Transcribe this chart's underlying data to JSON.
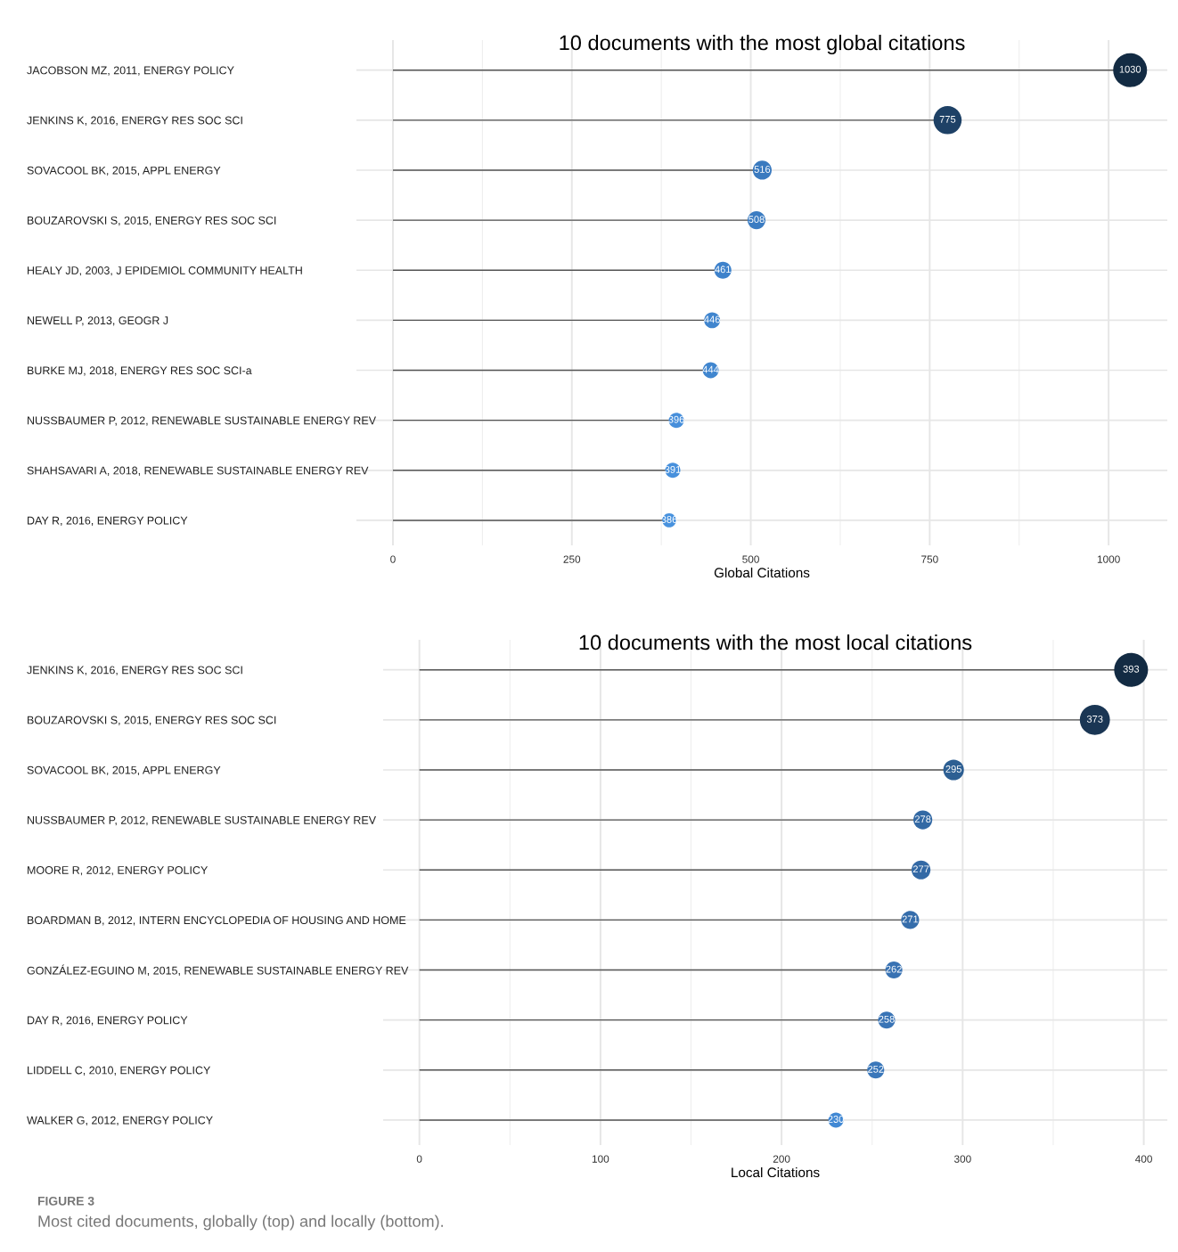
{
  "chart_data": [
    {
      "type": "lollipop",
      "orientation": "horizontal",
      "title": "10 documents with the most global citations",
      "xlabel": "Global Citations",
      "categories": [
        "JACOBSON MZ, 2011, ENERGY POLICY",
        "JENKINS K, 2016, ENERGY RES SOC SCI",
        "SOVACOOL BK, 2015, APPL ENERGY",
        "BOUZAROVSKI S, 2015, ENERGY RES SOC SCI",
        "HEALY JD, 2003, J EPIDEMIOL COMMUNITY HEALTH",
        "NEWELL P, 2013, GEOGR J",
        "BURKE MJ, 2018, ENERGY RES SOC SCI-a",
        "NUSSBAUMER P, 2012, RENEWABLE SUSTAINABLE ENERGY REV",
        "SHAHSAVARI A, 2018, RENEWABLE SUSTAINABLE ENERGY REV",
        "DAY R, 2016, ENERGY POLICY"
      ],
      "values": [
        1030,
        775,
        516,
        508,
        461,
        446,
        444,
        396,
        391,
        386
      ],
      "sizes": [
        1,
        0.69,
        0.31,
        0.28,
        0.25,
        0.22,
        0.22,
        0.2,
        0.2,
        0.17
      ],
      "colors": [
        "#132b43",
        "#1e4166",
        "#3a7abf",
        "#3b7cc2",
        "#3e82cb",
        "#4085ce",
        "#4086cf",
        "#478fdb",
        "#4790dc",
        "#4892de"
      ],
      "xlim": [
        -51,
        1082
      ],
      "xticks": [
        0,
        250,
        500,
        750,
        1000
      ],
      "grid": true,
      "data_labels": true
    },
    {
      "type": "lollipop",
      "orientation": "horizontal",
      "title": "10 documents with the most local citations",
      "xlabel": "Local Citations",
      "categories": [
        "JENKINS K, 2016, ENERGY RES SOC SCI",
        "BOUZAROVSKI S, 2015, ENERGY RES SOC SCI",
        "SOVACOOL BK, 2015, APPL ENERGY",
        "NUSSBAUMER P, 2012, RENEWABLE SUSTAINABLE ENERGY REV",
        "MOORE R, 2012, ENERGY POLICY",
        "BOARDMAN B, 2012, INTERN ENCYCLOPEDIA OF HOUSING AND HOME",
        "GONZÁLEZ-EGUINO M, 2015, RENEWABLE SUSTAINABLE ENERGY REV",
        "DAY R, 2016, ENERGY POLICY",
        "LIDDELL C, 2010, ENERGY POLICY",
        "WALKER G, 2012, ENERGY POLICY"
      ],
      "values": [
        393,
        373,
        295,
        278,
        277,
        271,
        262,
        258,
        252,
        230
      ],
      "sizes": [
        1,
        0.79,
        0.37,
        0.31,
        0.31,
        0.28,
        0.25,
        0.25,
        0.25,
        0.2
      ],
      "colors": [
        "#132b43",
        "#1a3654",
        "#2d5f93",
        "#3369a4",
        "#3369a5",
        "#356dab",
        "#3872b3",
        "#3974b6",
        "#3a77ba",
        "#4289d4"
      ],
      "xlim": [
        -20,
        413
      ],
      "xticks": [
        0,
        100,
        200,
        300,
        400
      ],
      "grid": true,
      "data_labels": true,
      "annotations": [
        "FIGURE 3",
        "Most cited documents, globally (top) and locally (bottom)."
      ]
    }
  ]
}
